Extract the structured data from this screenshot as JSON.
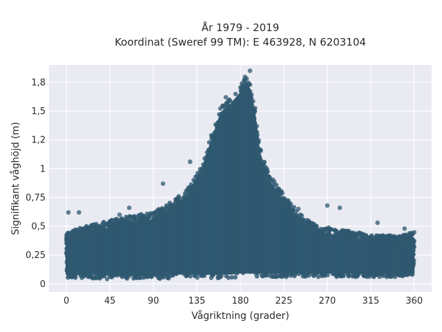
{
  "chart_data": {
    "type": "scatter",
    "title": "År 1979 - 2019",
    "subtitle": "Koordinat (Sweref 99 TM): E 463928, N 6203104",
    "xlabel": "Vågriktning (grader)",
    "ylabel": "Signifikant våghöjd (m)",
    "xlim": [
      -18,
      378
    ],
    "ylim": [
      -0.07,
      1.9
    ],
    "xticks": [
      0,
      45,
      90,
      135,
      180,
      225,
      270,
      315,
      360
    ],
    "xtick_labels": [
      "0",
      "45",
      "90",
      "135",
      "180",
      "225",
      "270",
      "315",
      "360"
    ],
    "yticks": [
      0,
      0.25,
      0.5,
      0.75,
      1,
      1.25,
      1.5,
      1.75
    ],
    "ytick_labels": [
      "0",
      "0,25",
      "0,5",
      "0,75",
      "1",
      "1,2",
      "1,5",
      "1,8"
    ],
    "grid": true,
    "marker_color": "#2f5970",
    "plot_background": "#e9eaf2",
    "envelope": {
      "direction": [
        0,
        20,
        45,
        70,
        90,
        110,
        125,
        140,
        150,
        160,
        170,
        180,
        185,
        190,
        195,
        200,
        210,
        225,
        240,
        260,
        280,
        300,
        315,
        330,
        345,
        360
      ],
      "upper_height": [
        0.45,
        0.5,
        0.55,
        0.6,
        0.62,
        0.72,
        0.82,
        1.05,
        1.3,
        1.55,
        1.62,
        1.72,
        1.82,
        1.75,
        1.55,
        1.2,
        0.95,
        0.78,
        0.62,
        0.5,
        0.48,
        0.45,
        0.42,
        0.42,
        0.42,
        0.45
      ],
      "lower_height": [
        0.05,
        0.05,
        0.04,
        0.04,
        0.04,
        0.05,
        0.05,
        0.05,
        0.05,
        0.05,
        0.05,
        0.06,
        0.06,
        0.06,
        0.06,
        0.06,
        0.06,
        0.06,
        0.06,
        0.06,
        0.06,
        0.06,
        0.06,
        0.06,
        0.06,
        0.06
      ]
    },
    "highlighted_points": [
      {
        "x": 2,
        "y": 0.62
      },
      {
        "x": 13,
        "y": 0.62
      },
      {
        "x": 55,
        "y": 0.6
      },
      {
        "x": 65,
        "y": 0.66
      },
      {
        "x": 100,
        "y": 0.87
      },
      {
        "x": 128,
        "y": 1.06
      },
      {
        "x": 165,
        "y": 1.62
      },
      {
        "x": 182,
        "y": 1.72
      },
      {
        "x": 190,
        "y": 1.85
      },
      {
        "x": 195,
        "y": 1.5
      },
      {
        "x": 205,
        "y": 1.0
      },
      {
        "x": 225,
        "y": 0.7
      },
      {
        "x": 240,
        "y": 0.65
      },
      {
        "x": 270,
        "y": 0.68
      },
      {
        "x": 283,
        "y": 0.66
      },
      {
        "x": 322,
        "y": 0.53
      },
      {
        "x": 350,
        "y": 0.48
      },
      {
        "x": 357,
        "y": 0.44
      }
    ]
  }
}
